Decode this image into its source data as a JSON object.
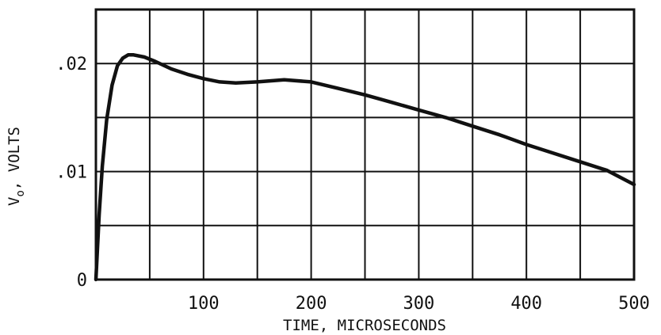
{
  "chart_data": {
    "type": "line",
    "title": "",
    "xlabel": "TIME, MICROSECONDS",
    "ylabel": {
      "main": "V",
      "subscript": "o",
      "rest": ", VOLTS"
    },
    "xlim": [
      0,
      500
    ],
    "ylim": [
      0,
      0.025
    ],
    "grid": true,
    "x_gridlines": [
      50,
      100,
      150,
      200,
      250,
      300,
      350,
      400,
      450
    ],
    "y_gridlines": [
      0.005,
      0.01,
      0.015,
      0.02
    ],
    "x_tick_labels": [
      {
        "value": 100,
        "label": "100"
      },
      {
        "value": 200,
        "label": "200"
      },
      {
        "value": 300,
        "label": "300"
      },
      {
        "value": 400,
        "label": "400"
      },
      {
        "value": 500,
        "label": "500"
      }
    ],
    "y_tick_labels": [
      {
        "value": 0,
        "label": "0"
      },
      {
        "value": 0.01,
        "label": ".01"
      },
      {
        "value": 0.02,
        "label": ".02"
      }
    ],
    "series": [
      {
        "color": "#111111",
        "points": [
          [
            0,
            0.0
          ],
          [
            3,
            0.006
          ],
          [
            6,
            0.0105
          ],
          [
            10,
            0.0148
          ],
          [
            15,
            0.018
          ],
          [
            20,
            0.0198
          ],
          [
            25,
            0.0205
          ],
          [
            30,
            0.0208
          ],
          [
            35,
            0.0208
          ],
          [
            45,
            0.0206
          ],
          [
            55,
            0.0202
          ],
          [
            70,
            0.0195
          ],
          [
            85,
            0.019
          ],
          [
            100,
            0.0186
          ],
          [
            115,
            0.0183
          ],
          [
            130,
            0.0182
          ],
          [
            150,
            0.0183
          ],
          [
            175,
            0.0185
          ],
          [
            200,
            0.0183
          ],
          [
            225,
            0.0177
          ],
          [
            250,
            0.0171
          ],
          [
            275,
            0.0164
          ],
          [
            300,
            0.0157
          ],
          [
            325,
            0.015
          ],
          [
            350,
            0.0142
          ],
          [
            375,
            0.0134
          ],
          [
            400,
            0.0125
          ],
          [
            425,
            0.0117
          ],
          [
            450,
            0.0109
          ],
          [
            475,
            0.0101
          ],
          [
            500,
            0.0088
          ]
        ]
      }
    ]
  }
}
